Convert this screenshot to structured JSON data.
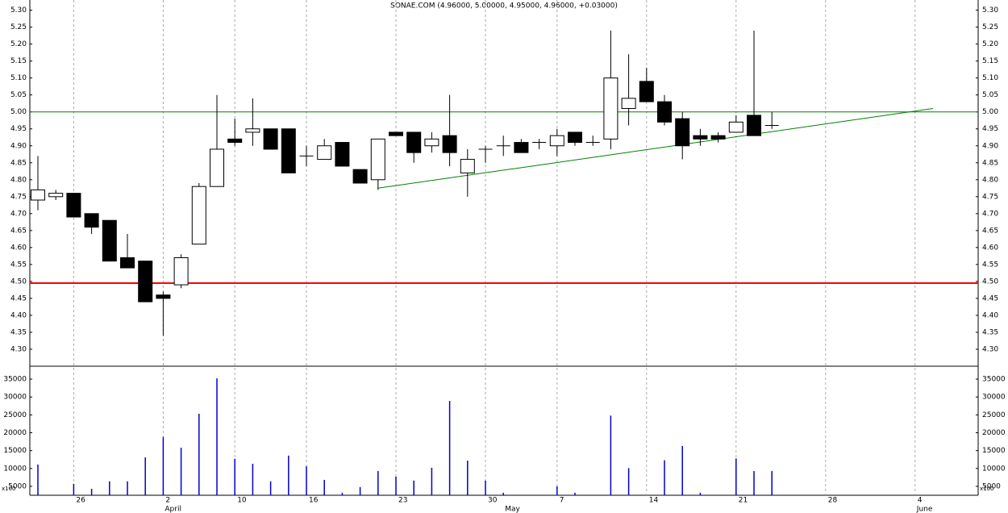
{
  "chart_data": {
    "type": "candlestick",
    "title": "SONAE.COM (4.96000, 5.00000, 4.95000, 4.96000, +0.03000)",
    "categories": [
      null,
      null,
      "26",
      null,
      null,
      null,
      null,
      "2",
      null,
      null,
      null,
      "10",
      null,
      null,
      null,
      "16",
      null,
      null,
      null,
      null,
      "23",
      null,
      null,
      null,
      null,
      "30",
      null,
      null,
      null,
      "7",
      null,
      null,
      null,
      null,
      "14",
      null,
      null,
      null,
      null,
      "21",
      null,
      null,
      null,
      null,
      "28",
      null,
      null,
      null,
      null,
      "4",
      null,
      null,
      null
    ],
    "month_labels": [
      null,
      null,
      null,
      null,
      null,
      null,
      null,
      "April",
      null,
      null,
      null,
      null,
      null,
      null,
      null,
      null,
      null,
      null,
      null,
      null,
      null,
      null,
      null,
      null,
      null,
      null,
      "May",
      null,
      null,
      null,
      null,
      null,
      null,
      null,
      null,
      null,
      null,
      null,
      null,
      null,
      null,
      null,
      null,
      null,
      null,
      null,
      null,
      null,
      null,
      "June",
      null,
      null,
      null
    ],
    "open": [
      4.74,
      4.75,
      4.76,
      4.7,
      4.68,
      4.57,
      4.56,
      4.46,
      4.49,
      4.61,
      4.78,
      4.92,
      4.94,
      4.95,
      4.95,
      4.87,
      4.86,
      4.91,
      4.83,
      4.8,
      4.94,
      4.94,
      4.9,
      4.93,
      4.82,
      4.89,
      4.9,
      4.91,
      4.91,
      4.9,
      4.94,
      4.91,
      4.92,
      5.01,
      5.09,
      5.03,
      4.98,
      4.93,
      4.93,
      4.94,
      4.99,
      4.96,
      null,
      null,
      null,
      null,
      null,
      null,
      null,
      null,
      null,
      null,
      null
    ],
    "high": [
      4.87,
      4.77,
      4.76,
      4.7,
      4.68,
      4.64,
      4.56,
      4.47,
      4.58,
      4.79,
      5.05,
      4.98,
      5.04,
      4.95,
      4.95,
      4.9,
      4.92,
      4.91,
      4.83,
      4.92,
      4.94,
      4.94,
      4.94,
      5.05,
      4.89,
      4.9,
      4.93,
      4.92,
      4.92,
      4.95,
      4.94,
      4.93,
      5.24,
      5.17,
      5.13,
      5.05,
      5.0,
      4.95,
      4.94,
      4.99,
      5.24,
      5.0,
      null,
      null,
      null,
      null,
      null,
      null,
      null,
      null,
      null,
      null,
      null
    ],
    "low": [
      4.71,
      4.74,
      4.69,
      4.64,
      4.56,
      4.54,
      4.44,
      4.34,
      4.48,
      4.61,
      4.78,
      4.9,
      4.9,
      4.89,
      4.82,
      4.84,
      4.86,
      4.84,
      4.79,
      4.77,
      4.93,
      4.85,
      4.88,
      4.84,
      4.75,
      4.85,
      4.87,
      4.88,
      4.89,
      4.87,
      4.9,
      4.9,
      4.89,
      4.96,
      5.03,
      4.96,
      4.86,
      4.9,
      4.91,
      4.94,
      4.93,
      4.95,
      null,
      null,
      null,
      null,
      null,
      null,
      null,
      null,
      null,
      null,
      null
    ],
    "close": [
      4.77,
      4.76,
      4.69,
      4.66,
      4.56,
      4.54,
      4.44,
      4.45,
      4.57,
      4.78,
      4.89,
      4.91,
      4.95,
      4.89,
      4.82,
      4.87,
      4.9,
      4.84,
      4.79,
      4.92,
      4.93,
      4.88,
      4.92,
      4.88,
      4.86,
      4.89,
      4.9,
      4.88,
      4.91,
      4.93,
      4.91,
      4.91,
      5.1,
      5.04,
      5.03,
      4.97,
      4.9,
      4.92,
      4.92,
      4.97,
      4.93,
      4.96,
      null,
      null,
      null,
      null,
      null,
      null,
      null,
      null,
      null,
      null,
      null
    ],
    "volume": [
      11100,
      null,
      5700,
      4300,
      6400,
      6400,
      13100,
      18800,
      15800,
      25300,
      35200,
      12700,
      11300,
      6400,
      13600,
      10600,
      6800,
      3200,
      4800,
      9300,
      7700,
      6600,
      10200,
      28900,
      12200,
      6600,
      3200,
      2600,
      null,
      5000,
      3200,
      null,
      24800,
      10100,
      null,
      12300,
      16300,
      3200,
      null,
      12800,
      9300,
      9300,
      null,
      null,
      null,
      null,
      null,
      null,
      null,
      null,
      null,
      null,
      null
    ],
    "up_color": "#ffffff",
    "down_color": "#000000",
    "volume_color": "#0000cc",
    "ylim": [
      4.25,
      5.33
    ],
    "yticks": [
      {
        "value": 4.3,
        "label": "4.30"
      },
      4.35,
      {
        "value": 4.4,
        "label": "4.40"
      },
      4.45,
      {
        "value": 4.5,
        "label": "4.50"
      },
      4.55,
      {
        "value": 4.6,
        "label": "4.60"
      },
      4.65,
      {
        "value": 4.7,
        "label": "4.70"
      },
      4.75,
      {
        "value": 4.8,
        "label": "4.80"
      },
      4.85,
      {
        "value": 4.9,
        "label": "4.90"
      },
      4.95,
      {
        "value": 5.0,
        "label": "5.00"
      },
      5.05,
      {
        "value": 5.1,
        "label": "5.10"
      },
      5.15,
      {
        "value": 5.2,
        "label": "5.20"
      },
      5.25,
      {
        "value": 5.3,
        "label": "5.30"
      }
    ],
    "volume_ylim": [
      2500,
      38400
    ],
    "volume_yticks": [
      5000,
      10000,
      15000,
      20000,
      25000,
      30000,
      35000
    ],
    "volume_unit_label": "x100",
    "hlines": [
      {
        "value": 5.0,
        "color": "#008000"
      },
      {
        "value": 4.495,
        "color": "#ff0000"
      }
    ],
    "trendline": {
      "x": [
        19,
        50
      ],
      "y": [
        4.775,
        5.01
      ],
      "color": "#008000"
    },
    "grid": true
  }
}
